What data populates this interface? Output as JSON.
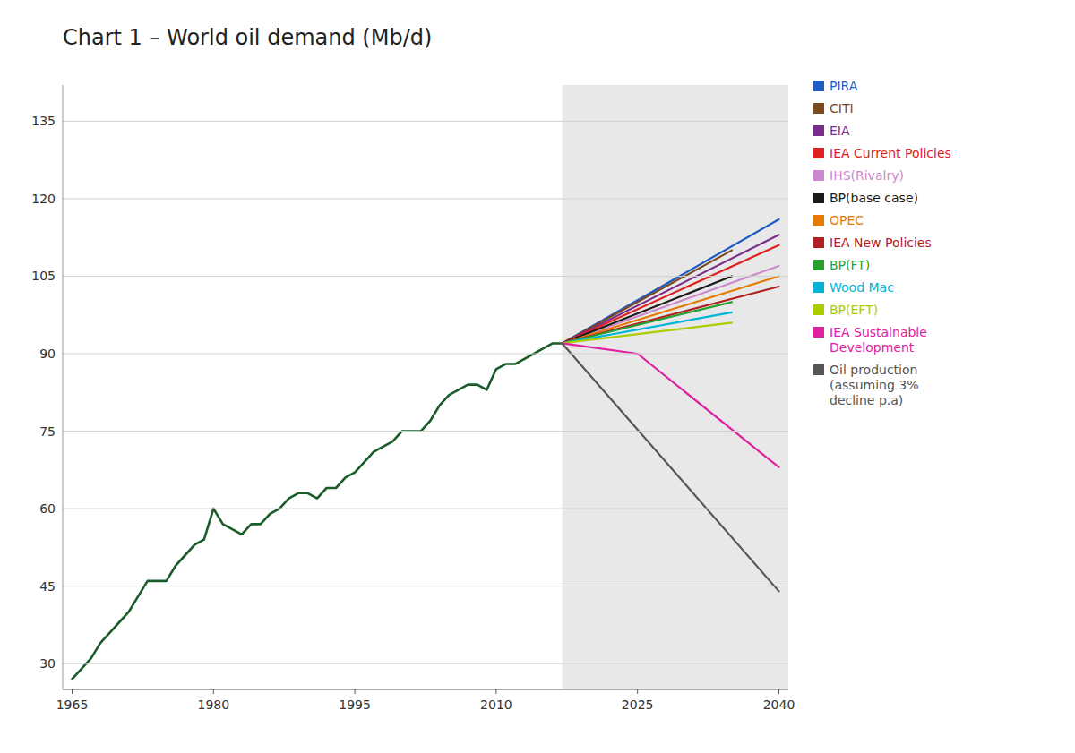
{
  "chart_data": {
    "type": "line",
    "title": "Chart 1 – World oil demand (Mb/d)",
    "xlim": [
      1964,
      2041
    ],
    "ylim": [
      25,
      142
    ],
    "xticks": [
      1965,
      1980,
      1995,
      2010,
      2025,
      2040
    ],
    "yticks": [
      30,
      45,
      60,
      75,
      90,
      105,
      120,
      135
    ],
    "grid": true,
    "legend": "right",
    "shade": {
      "x": 2017,
      "color": "#e8e8e8"
    },
    "series": [
      {
        "color": "#1a5c2a",
        "x": [
          1965,
          1966,
          1967,
          1968,
          1969,
          1970,
          1971,
          1972,
          1973,
          1974,
          1975,
          1976,
          1977,
          1978,
          1979,
          1980,
          1981,
          1982,
          1983,
          1984,
          1985,
          1986,
          1987,
          1988,
          1989,
          1990,
          1991,
          1992,
          1993,
          1994,
          1995,
          1996,
          1997,
          1998,
          1999,
          2000,
          2001,
          2002,
          2003,
          2004,
          2005,
          2006,
          2007,
          2008,
          2009,
          2010,
          2011,
          2012,
          2013,
          2014,
          2015,
          2016,
          2017
        ],
        "values": [
          27,
          29,
          31,
          34,
          36,
          38,
          40,
          43,
          46,
          46,
          46,
          49,
          51,
          53,
          54,
          60,
          57,
          56,
          55,
          57,
          57,
          59,
          60,
          62,
          63,
          63,
          62,
          64,
          64,
          66,
          67,
          69,
          71,
          72,
          73,
          75,
          75,
          75,
          77,
          80,
          82,
          83,
          84,
          84,
          83,
          87,
          88,
          88,
          89,
          90,
          91,
          92,
          92
        ]
      },
      {
        "name": "PIRA",
        "color": "#1e5bc6",
        "x": [
          2017,
          2040
        ],
        "values": [
          92,
          116
        ]
      },
      {
        "name": "CITI",
        "color": "#7b4a1e",
        "x": [
          2017,
          2035
        ],
        "values": [
          92,
          110
        ]
      },
      {
        "name": "EIA",
        "color": "#7b2d8b",
        "x": [
          2017,
          2040
        ],
        "values": [
          92,
          113
        ]
      },
      {
        "name": "IEA Current Policies",
        "color": "#e02020",
        "x": [
          2017,
          2040
        ],
        "values": [
          92,
          111
        ]
      },
      {
        "name": "IHS(Rivalry)",
        "color": "#cc88cc",
        "x": [
          2017,
          2040
        ],
        "values": [
          92,
          107
        ]
      },
      {
        "name": "BP(base case)",
        "color": "#1a1a1a",
        "x": [
          2017,
          2035
        ],
        "values": [
          92,
          105
        ]
      },
      {
        "name": "OPEC",
        "color": "#e87a00",
        "x": [
          2017,
          2040
        ],
        "values": [
          92,
          105
        ]
      },
      {
        "name": "IEA New Policies",
        "color": "#b02020",
        "x": [
          2017,
          2040
        ],
        "values": [
          92,
          103
        ]
      },
      {
        "name": "BP(FT)",
        "color": "#28a030",
        "x": [
          2017,
          2035
        ],
        "values": [
          92,
          100
        ]
      },
      {
        "name": "Wood Mac",
        "color": "#00b4d8",
        "x": [
          2017,
          2035
        ],
        "values": [
          92,
          98
        ]
      },
      {
        "name": "BP(EFT)",
        "color": "#aacc00",
        "x": [
          2017,
          2035
        ],
        "values": [
          92,
          96
        ]
      },
      {
        "name": "IEA Sustainable\nDevelopment",
        "color": "#e020a0",
        "x": [
          2017,
          2025,
          2040
        ],
        "values": [
          92,
          90,
          68
        ]
      },
      {
        "name": "Oil production\n(assuming 3%\ndecline p.a)",
        "color": "#555555",
        "x": [
          2017,
          2040
        ],
        "values": [
          92,
          44
        ]
      }
    ]
  }
}
